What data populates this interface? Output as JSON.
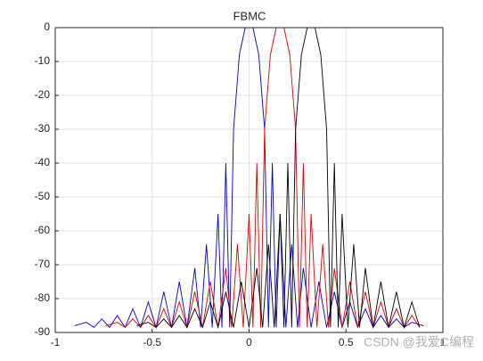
{
  "chart_data": {
    "type": "line",
    "title": "FBMC",
    "xlim": [
      -1,
      1
    ],
    "xticks": [
      -1,
      -0.5,
      0,
      0.5,
      1
    ],
    "ylim": [
      -90,
      0
    ],
    "yticks": [
      0,
      -10,
      -20,
      -30,
      -40,
      -50,
      -60,
      -70,
      -80,
      -90
    ],
    "grid": true,
    "series": [
      {
        "color": "#0000cc",
        "x": [
          -0.9,
          -0.84,
          -0.8,
          -0.76,
          -0.72,
          -0.68,
          -0.64,
          -0.6,
          -0.56,
          -0.52,
          -0.48,
          -0.44,
          -0.4,
          -0.36,
          -0.32,
          -0.28,
          -0.25,
          -0.22,
          -0.19,
          -0.16,
          -0.14,
          -0.12,
          -0.1,
          -0.08,
          -0.05,
          -0.02,
          0.02,
          0.05,
          0.08,
          0.1,
          0.12,
          0.14,
          0.16,
          0.19,
          0.22,
          0.25,
          0.28,
          0.32,
          0.36,
          0.4,
          0.44,
          0.48,
          0.52,
          0.56,
          0.6,
          0.64,
          0.68,
          0.72,
          0.76,
          0.8,
          0.84,
          0.9
        ],
        "values": [
          -88,
          -87,
          -88.5,
          -86,
          -88.5,
          -85,
          -88.5,
          -83,
          -88.5,
          -81,
          -88.5,
          -78,
          -88.5,
          -75,
          -88.5,
          -71,
          -88.5,
          -64,
          -88.5,
          -55,
          -88.5,
          -40,
          -88.5,
          -30,
          -8,
          0,
          0,
          -8,
          -30,
          -88.5,
          -40,
          -88.5,
          -55,
          -88.5,
          -64,
          -88.5,
          -71,
          -88.5,
          -75,
          -88.5,
          -78,
          -88.5,
          -81,
          -88.5,
          -83,
          -88.5,
          -85,
          -88.5,
          -86,
          -88.5,
          -87,
          -88
        ]
      },
      {
        "color": "#dd0000",
        "x": [
          -0.74,
          -0.68,
          -0.64,
          -0.6,
          -0.56,
          -0.52,
          -0.48,
          -0.44,
          -0.4,
          -0.36,
          -0.32,
          -0.28,
          -0.24,
          -0.2,
          -0.16,
          -0.12,
          -0.09,
          -0.06,
          -0.03,
          0,
          0.02,
          0.04,
          0.06,
          0.08,
          0.11,
          0.14,
          0.18,
          0.21,
          0.24,
          0.26,
          0.28,
          0.3,
          0.32,
          0.35,
          0.38,
          0.41,
          0.44,
          0.48,
          0.52,
          0.56,
          0.6,
          0.64,
          0.68,
          0.72,
          0.76,
          0.8,
          0.84,
          0.88
        ],
        "values": [
          -88,
          -87,
          -88.5,
          -86,
          -88.5,
          -85,
          -88.5,
          -83,
          -88.5,
          -81,
          -88.5,
          -78,
          -88.5,
          -75,
          -88.5,
          -71,
          -88.5,
          -64,
          -88.5,
          -55,
          -88.5,
          -40,
          -88.5,
          -30,
          -8,
          0,
          0,
          -8,
          -30,
          -88.5,
          -40,
          -88.5,
          -55,
          -88.5,
          -64,
          -88.5,
          -71,
          -88.5,
          -75,
          -88.5,
          -78,
          -88.5,
          -81,
          -88.5,
          -83,
          -88.5,
          -85,
          -88.5
        ]
      },
      {
        "color": "#000000",
        "x": [
          -0.58,
          -0.52,
          -0.48,
          -0.44,
          -0.4,
          -0.36,
          -0.32,
          -0.28,
          -0.24,
          -0.2,
          -0.16,
          -0.12,
          -0.08,
          -0.04,
          0,
          0.04,
          0.07,
          0.1,
          0.13,
          0.16,
          0.18,
          0.2,
          0.22,
          0.24,
          0.27,
          0.3,
          0.34,
          0.37,
          0.4,
          0.42,
          0.44,
          0.46,
          0.48,
          0.51,
          0.54,
          0.57,
          0.6,
          0.64,
          0.68,
          0.72,
          0.76,
          0.8,
          0.84,
          0.88
        ],
        "values": [
          -88,
          -87,
          -88.5,
          -86,
          -88.5,
          -85,
          -88.5,
          -83,
          -88.5,
          -81,
          -88.5,
          -78,
          -88.5,
          -75,
          -88.5,
          -71,
          -88.5,
          -64,
          -88.5,
          -55,
          -88.5,
          -40,
          -88.5,
          -30,
          -8,
          0,
          0,
          -8,
          -30,
          -88.5,
          -40,
          -88.5,
          -55,
          -88.5,
          -64,
          -88.5,
          -71,
          -88.5,
          -75,
          -88.5,
          -78,
          -88.5,
          -81,
          -88.5
        ]
      }
    ]
  },
  "watermark": "CSDN @我爱C编程"
}
